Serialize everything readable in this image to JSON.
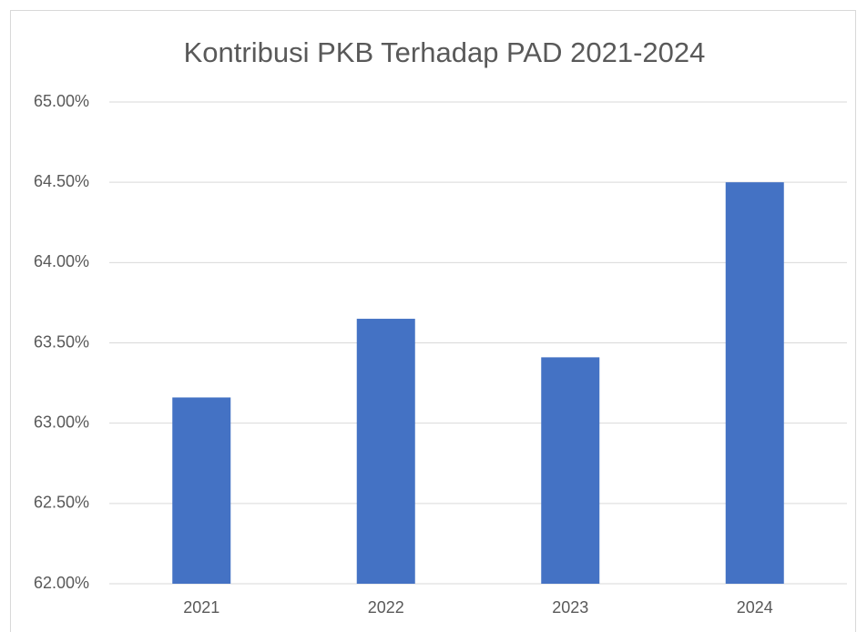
{
  "chart_data": {
    "type": "bar",
    "title": "Kontribusi PKB Terhadap PAD 2021-2024",
    "categories": [
      "2021",
      "2022",
      "2023",
      "2024"
    ],
    "values": [
      63.16,
      63.65,
      63.41,
      64.5
    ],
    "color": "#4472c4",
    "ylim": [
      62,
      65
    ],
    "yticks": [
      {
        "value": 62,
        "label": "62.00%"
      },
      {
        "value": 62.5,
        "label": "62.50%"
      },
      {
        "value": 63,
        "label": "63.00%"
      },
      {
        "value": 63.5,
        "label": "63.50%"
      },
      {
        "value": 64,
        "label": "64.00%"
      },
      {
        "value": 64.5,
        "label": "64.50%"
      },
      {
        "value": 65,
        "label": "65.00%"
      }
    ],
    "grid": true
  }
}
